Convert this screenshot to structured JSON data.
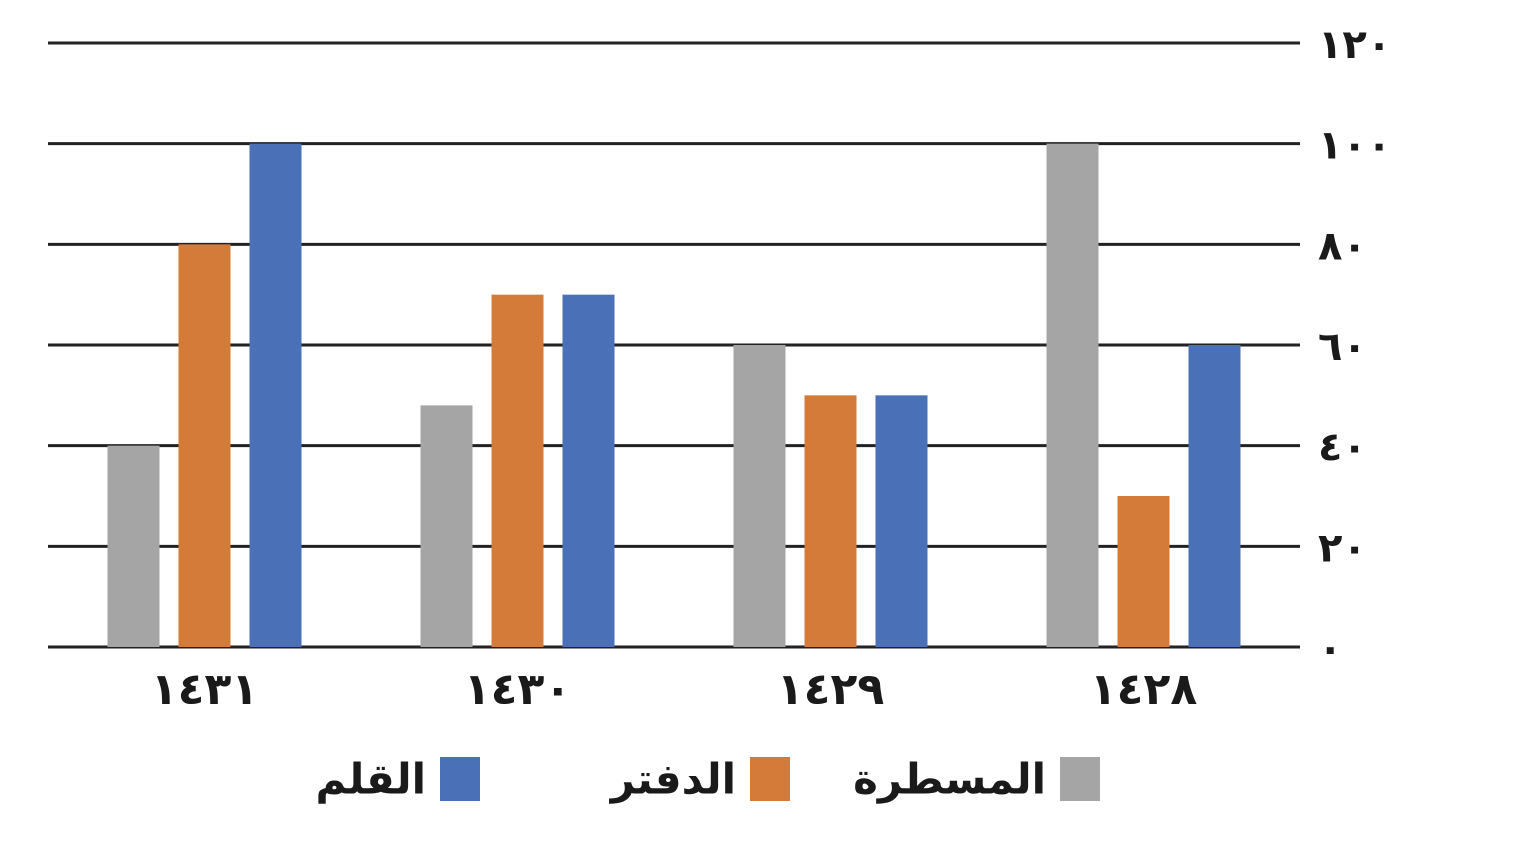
{
  "chart_data": {
    "type": "bar",
    "categories": [
      "١٤٣١",
      "١٤٣٠",
      "١٤٢٩",
      "١٤٢٨"
    ],
    "series": [
      {
        "name": "المسطرة",
        "color": "#a5a5a5",
        "values": [
          40,
          48,
          60,
          100
        ]
      },
      {
        "name": "الدفتر",
        "color": "#d57b3a",
        "values": [
          80,
          70,
          50,
          30
        ]
      },
      {
        "name": "القلم",
        "color": "#4a70b8",
        "values": [
          100,
          70,
          50,
          60
        ]
      }
    ],
    "ylim": [
      0,
      120
    ],
    "yticks": [
      {
        "value": 0,
        "label": "٠"
      },
      {
        "value": 20,
        "label": "٢٠"
      },
      {
        "value": 40,
        "label": "٤٠"
      },
      {
        "value": 60,
        "label": "٦٠"
      },
      {
        "value": 80,
        "label": "٨٠"
      },
      {
        "value": 100,
        "label": "١٠٠"
      },
      {
        "value": 120,
        "label": "١٢٠"
      }
    ],
    "grid": true
  }
}
